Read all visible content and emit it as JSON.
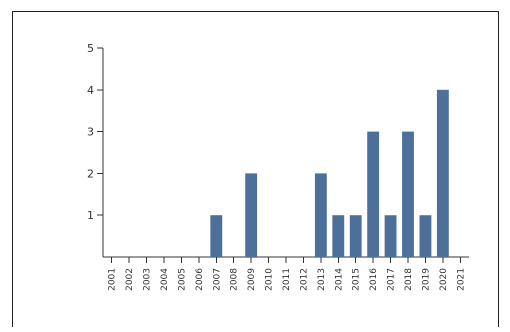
{
  "chart_data": {
    "type": "bar",
    "categories": [
      "2001",
      "2002",
      "2003",
      "2004",
      "2005",
      "2006",
      "2007",
      "2008",
      "2009",
      "2010",
      "2011",
      "2012",
      "2013",
      "2014",
      "2015",
      "2016",
      "2017",
      "2018",
      "2019",
      "2020",
      "2021"
    ],
    "values": [
      0,
      0,
      0,
      0,
      0,
      0,
      1,
      0,
      2,
      0,
      0,
      0,
      2,
      1,
      1,
      3,
      1,
      3,
      1,
      4,
      0
    ],
    "title": "",
    "xlabel": "",
    "ylabel": "",
    "ylim": [
      0,
      5
    ],
    "yticks": [
      1,
      2,
      3,
      4,
      5
    ],
    "grid": false,
    "bar_color": "#4d709a"
  }
}
